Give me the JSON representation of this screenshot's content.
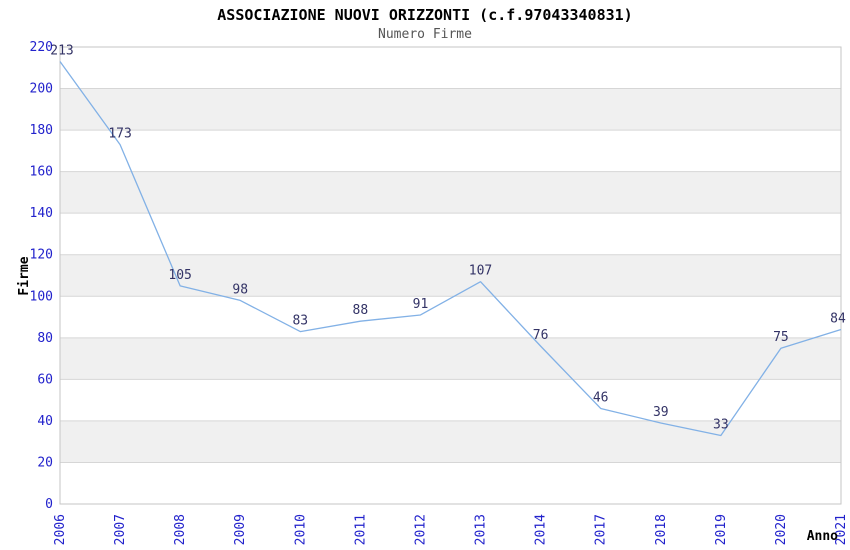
{
  "title": "ASSOCIAZIONE NUOVI ORIZZONTI (c.f.97043340831)",
  "subtitle": "Numero Firme",
  "chart_data": {
    "type": "line",
    "title": "ASSOCIAZIONE NUOVI ORIZZONTI (c.f.97043340831)",
    "subtitle": "Numero Firme",
    "categories": [
      "2006",
      "2007",
      "2008",
      "2009",
      "2010",
      "2011",
      "2012",
      "2013",
      "2014",
      "2017",
      "2018",
      "2019",
      "2020",
      "2021"
    ],
    "values": [
      213,
      173,
      105,
      98,
      83,
      88,
      91,
      107,
      76,
      46,
      39,
      33,
      75,
      84
    ],
    "xlabel": "Anno",
    "ylabel": "Firme",
    "ylim": [
      0,
      220
    ],
    "yticks": [
      0,
      20,
      40,
      60,
      80,
      100,
      120,
      140,
      160,
      180,
      200,
      220
    ],
    "grid": "horizontal-only",
    "bands": "alternating-horizontal",
    "legend": "none",
    "markers": "none",
    "data_labels": "above-points",
    "colors": {
      "line": "#82b1e6",
      "tick_label": "#2222cc",
      "data_label": "#333366",
      "band": "#f0f0f0",
      "background": "#ffffff",
      "gridline": "#d6d6d6",
      "border": "#c6c6c6",
      "title": "#000000",
      "subtitle": "#555555",
      "axis_title": "#000000"
    }
  }
}
